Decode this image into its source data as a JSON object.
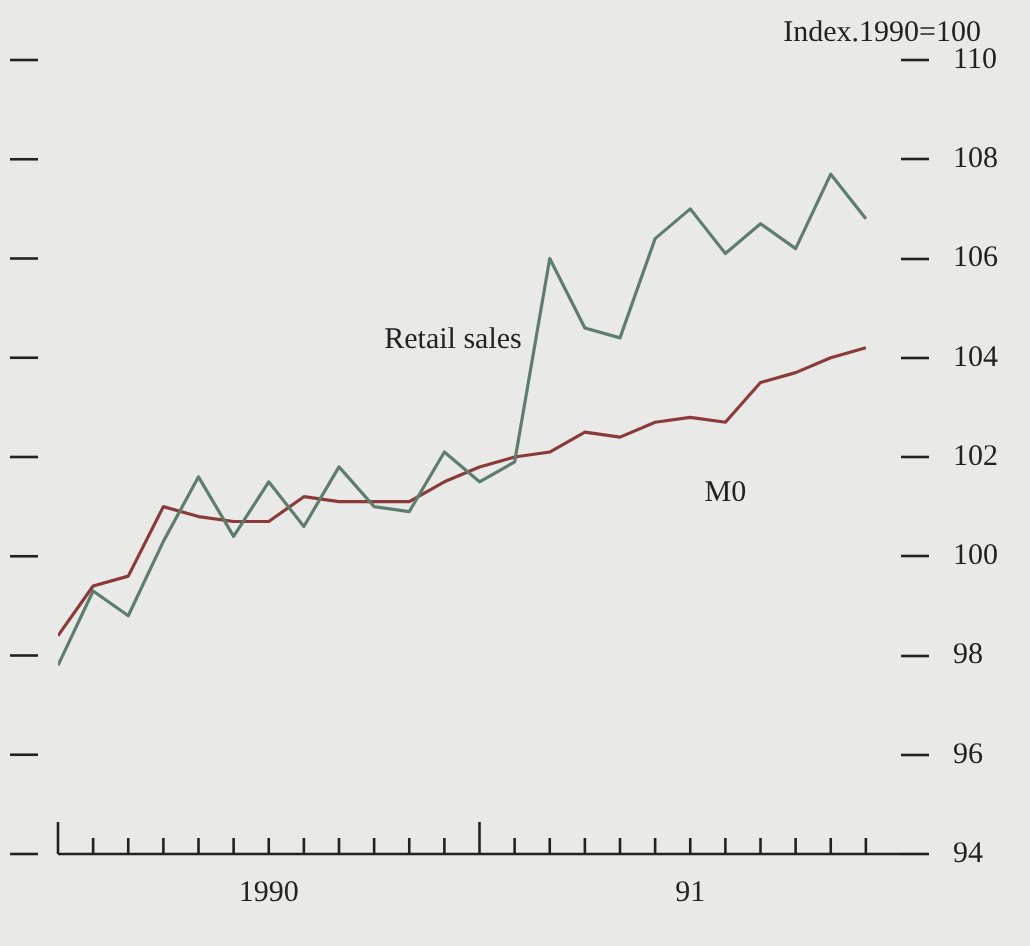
{
  "chart_data": {
    "type": "line",
    "ylabel": "Index.1990=100",
    "x": [
      "1990-01",
      "1990-02",
      "1990-03",
      "1990-04",
      "1990-05",
      "1990-06",
      "1990-07",
      "1990-08",
      "1990-09",
      "1990-10",
      "1990-11",
      "1990-12",
      "1991-01",
      "1991-02",
      "1991-03",
      "1991-04",
      "1991-05",
      "1991-06",
      "1991-07",
      "1991-08",
      "1991-09",
      "1991-10",
      "1991-11",
      "1991-12"
    ],
    "series": [
      {
        "name": "Retail sales",
        "color": "#5f7d6c",
        "values": [
          97.8,
          99.3,
          98.8,
          100.3,
          101.6,
          100.4,
          101.5,
          100.6,
          101.8,
          101.0,
          100.9,
          102.1,
          101.5,
          101.9,
          106.0,
          104.6,
          104.4,
          106.4,
          107.0,
          106.1,
          106.7,
          106.2,
          107.7,
          106.8
        ]
      },
      {
        "name": "M0",
        "color": "#8b3a3a",
        "values": [
          98.4,
          99.4,
          99.6,
          101.0,
          100.8,
          100.7,
          100.7,
          101.2,
          101.1,
          101.1,
          101.1,
          101.5,
          101.8,
          102.0,
          102.1,
          102.5,
          102.4,
          102.7,
          102.8,
          102.7,
          103.5,
          103.7,
          104.0,
          104.2
        ]
      }
    ],
    "xlim": [
      "1990-01",
      "1992-01"
    ],
    "xticks": [
      {
        "value": "1990-01",
        "label": null
      },
      {
        "value": "1990-02",
        "label": null
      },
      {
        "value": "1990-03",
        "label": null
      },
      {
        "value": "1990-04",
        "label": null
      },
      {
        "value": "1990-05",
        "label": null
      },
      {
        "value": "1990-06",
        "label": null
      },
      {
        "value": "1990-07",
        "label": "1990"
      },
      {
        "value": "1990-08",
        "label": null
      },
      {
        "value": "1990-09",
        "label": null
      },
      {
        "value": "1990-10",
        "label": null
      },
      {
        "value": "1990-11",
        "label": null
      },
      {
        "value": "1990-12",
        "label": null
      },
      {
        "value": "1991-01",
        "label": null
      },
      {
        "value": "1991-02",
        "label": null
      },
      {
        "value": "1991-03",
        "label": null
      },
      {
        "value": "1991-04",
        "label": null
      },
      {
        "value": "1991-05",
        "label": null
      },
      {
        "value": "1991-06",
        "label": null
      },
      {
        "value": "1991-07",
        "label": "91"
      },
      {
        "value": "1991-08",
        "label": null
      },
      {
        "value": "1991-09",
        "label": null
      },
      {
        "value": "1991-10",
        "label": null
      },
      {
        "value": "1991-11",
        "label": null
      },
      {
        "value": "1991-12",
        "label": null
      }
    ],
    "ylim": [
      94,
      110
    ],
    "yticks": [
      94,
      96,
      98,
      100,
      102,
      104,
      106,
      108,
      110
    ],
    "grid": false,
    "legend": false,
    "marker": "none",
    "line_style": "solid"
  }
}
